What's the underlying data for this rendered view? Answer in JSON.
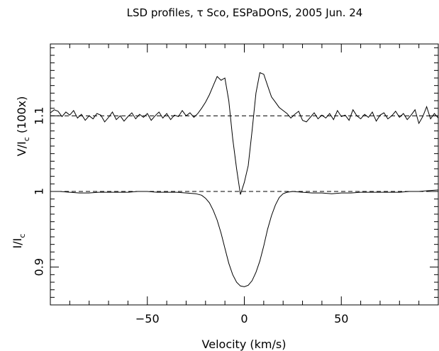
{
  "chart_data": {
    "type": "line",
    "title": "LSD profiles, τ Sco, ESPaDOnS, 2005 Jun. 24",
    "xlabel": "Velocity (km/s)",
    "ylabel_upper_main": "V/I",
    "ylabel_upper_sub": "c",
    "ylabel_upper_suffix": " (100x)",
    "ylabel_lower_main": "I/I",
    "ylabel_lower_sub": "c",
    "xlim": [
      -100,
      100
    ],
    "ylim": [
      0.85,
      1.195
    ],
    "grid": false,
    "x_ticks": [
      -50,
      0,
      50
    ],
    "x_tick_labels": [
      "−50",
      "0",
      "50"
    ],
    "y_ticks": [
      0.9,
      1.0,
      1.1
    ],
    "y_tick_labels": [
      "0.9",
      "1",
      "1.1"
    ],
    "reference_lines": [
      1.0,
      1.1
    ],
    "series": [
      {
        "x": [
          -100,
          -98,
          -96,
          -94,
          -92,
          -90,
          -88,
          -86,
          -84,
          -82,
          -80,
          -78,
          -76,
          -74,
          -72,
          -70,
          -68,
          -66,
          -64,
          -62,
          -60,
          -58,
          -56,
          -54,
          -52,
          -50,
          -48,
          -46,
          -44,
          -42,
          -40,
          -38,
          -36,
          -34,
          -32,
          -30,
          -28,
          -26,
          -24,
          -22,
          -20,
          -18,
          -16,
          -14,
          -12,
          -10,
          -8,
          -6,
          -4,
          -2,
          0,
          2,
          4,
          6,
          8,
          10,
          12,
          14,
          16,
          18,
          20,
          22,
          24,
          26,
          28,
          30,
          32,
          34,
          36,
          38,
          40,
          42,
          44,
          46,
          48,
          50,
          52,
          54,
          56,
          58,
          60,
          62,
          64,
          66,
          68,
          70,
          72,
          74,
          76,
          78,
          80,
          82,
          84,
          86,
          88,
          90,
          92,
          94,
          96,
          98,
          100
        ],
        "values": [
          1.104,
          1.108,
          1.106,
          1.099,
          1.105,
          1.101,
          1.107,
          1.097,
          1.102,
          1.094,
          1.1,
          1.096,
          1.103,
          1.101,
          1.092,
          1.098,
          1.105,
          1.095,
          1.1,
          1.093,
          1.099,
          1.104,
          1.096,
          1.102,
          1.098,
          1.103,
          1.094,
          1.1,
          1.105,
          1.097,
          1.103,
          1.095,
          1.101,
          1.099,
          1.107,
          1.1,
          1.104,
          1.098,
          1.103,
          1.11,
          1.118,
          1.128,
          1.14,
          1.152,
          1.147,
          1.15,
          1.12,
          1.07,
          1.03,
          0.996,
          1.012,
          1.034,
          1.08,
          1.13,
          1.157,
          1.155,
          1.14,
          1.125,
          1.118,
          1.111,
          1.107,
          1.103,
          1.097,
          1.102,
          1.106,
          1.094,
          1.092,
          1.098,
          1.104,
          1.096,
          1.101,
          1.097,
          1.103,
          1.095,
          1.107,
          1.099,
          1.101,
          1.094,
          1.108,
          1.1,
          1.096,
          1.102,
          1.098,
          1.105,
          1.093,
          1.101,
          1.104,
          1.096,
          1.1,
          1.106,
          1.098,
          1.103,
          1.095,
          1.101,
          1.108,
          1.09,
          1.099,
          1.112,
          1.096,
          1.103,
          1.097
        ]
      },
      {
        "x": [
          -100,
          -95,
          -90,
          -85,
          -80,
          -75,
          -70,
          -65,
          -60,
          -55,
          -50,
          -45,
          -40,
          -35,
          -30,
          -25,
          -22,
          -20,
          -18,
          -16,
          -14,
          -12,
          -10,
          -8,
          -6,
          -4,
          -2,
          0,
          2,
          4,
          6,
          8,
          10,
          12,
          14,
          16,
          18,
          20,
          22,
          25,
          30,
          35,
          40,
          45,
          50,
          55,
          60,
          65,
          70,
          75,
          80,
          85,
          90,
          95,
          100
        ],
        "values": [
          1.0,
          1.0,
          0.999,
          0.998,
          0.998,
          0.999,
          0.999,
          0.999,
          0.999,
          1.0,
          1.0,
          0.999,
          0.999,
          0.999,
          0.998,
          0.997,
          0.995,
          0.991,
          0.985,
          0.975,
          0.962,
          0.945,
          0.925,
          0.905,
          0.89,
          0.88,
          0.875,
          0.874,
          0.876,
          0.882,
          0.893,
          0.908,
          0.928,
          0.95,
          0.968,
          0.982,
          0.992,
          0.997,
          0.999,
          1.0,
          0.999,
          0.998,
          0.998,
          0.997,
          0.998,
          0.998,
          0.999,
          0.999,
          0.999,
          0.999,
          0.999,
          1.0,
          1.0,
          1.001,
          1.002
        ]
      }
    ]
  }
}
